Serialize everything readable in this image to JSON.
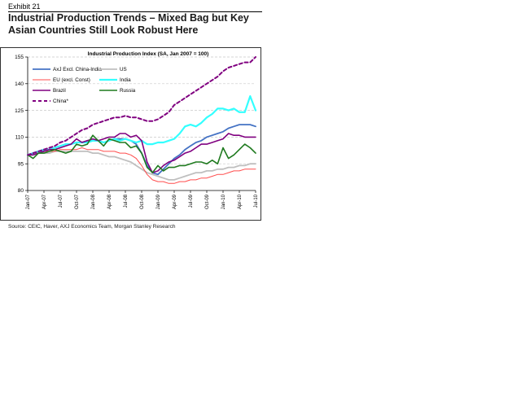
{
  "header": {
    "exhibit": "Exhibit 21",
    "title_line1": "Industrial Production Trends – Mixed Bag but Key",
    "title_line2": "Asian Countries Still Look Robust Here"
  },
  "source": "Source: CEIC, Haver, AXJ Economics Team, Morgan Stanley Research",
  "chart_data": {
    "type": "line",
    "title": "Industrial Production Index (SA, Jan 2007 = 100)",
    "xlabel": "",
    "ylabel": "",
    "ylim": [
      80,
      155
    ],
    "yticks": [
      80,
      95,
      110,
      125,
      140,
      155
    ],
    "ytick_labels": [
      "80",
      "95",
      "110",
      "125",
      "140",
      "155"
    ],
    "x_months": 43,
    "xtick_positions": [
      0,
      3,
      6,
      9,
      12,
      15,
      18,
      21,
      24,
      27,
      30,
      33,
      36,
      39,
      42
    ],
    "xtick_labels": [
      "Jan-07",
      "Apr-07",
      "Jul-07",
      "Oct-07",
      "Jan-08",
      "Apr-08",
      "Jul-08",
      "Oct-08",
      "Jan-09",
      "Apr-09",
      "Jul-09",
      "Oct-09",
      "Jan-10",
      "Apr-10",
      "Jul-10"
    ],
    "grid": "horizontal dashed",
    "legend": "top-left",
    "series": [
      {
        "name": "AxJ Excl. China-India",
        "color": "#4472c4",
        "style": "solid",
        "width": 1.8,
        "values": [
          100,
          101,
          102,
          102,
          103,
          104,
          105,
          106,
          106,
          107,
          107,
          108,
          108,
          108,
          107,
          108,
          109,
          109,
          109,
          108,
          106,
          101,
          94,
          90,
          89,
          92,
          95,
          98,
          100,
          103,
          105,
          107,
          108,
          110,
          111,
          112,
          113,
          115,
          116,
          117,
          117,
          117,
          116
        ]
      },
      {
        "name": "US",
        "color": "#bfbfbf",
        "style": "solid",
        "width": 1.8,
        "values": [
          100,
          100,
          101,
          101,
          101,
          102,
          102,
          102,
          102,
          102,
          102,
          102,
          101,
          101,
          100,
          99,
          99,
          98,
          97,
          96,
          94,
          92,
          90,
          89,
          88,
          87,
          86,
          86,
          87,
          88,
          89,
          90,
          90,
          91,
          91,
          92,
          92,
          93,
          93,
          94,
          94,
          95,
          95
        ]
      },
      {
        "name": "EU (excl. Const)",
        "color": "#ff4d4d",
        "style": "solid",
        "width": 1,
        "values": [
          100,
          101,
          101,
          102,
          102,
          102,
          103,
          103,
          103,
          103,
          104,
          103,
          103,
          103,
          102,
          102,
          102,
          101,
          101,
          100,
          98,
          94,
          89,
          86,
          85,
          85,
          84,
          84,
          85,
          85,
          86,
          86,
          87,
          87,
          88,
          89,
          89,
          90,
          91,
          91,
          92,
          92,
          92
        ]
      },
      {
        "name": "India",
        "color": "#33ffff",
        "style": "solid",
        "width": 2.2,
        "values": [
          100,
          101,
          102,
          103,
          103,
          104,
          105,
          106,
          106,
          107,
          107,
          107,
          108,
          108,
          107,
          108,
          109,
          108,
          109,
          108,
          107,
          108,
          106,
          106,
          107,
          107,
          108,
          109,
          112,
          116,
          117,
          116,
          118,
          121,
          123,
          126,
          126,
          125,
          126,
          124,
          124,
          133,
          125
        ]
      },
      {
        "name": "Brazil",
        "color": "#800080",
        "style": "solid",
        "width": 1.6,
        "values": [
          100,
          100,
          101,
          102,
          103,
          103,
          104,
          105,
          106,
          109,
          107,
          108,
          109,
          108,
          109,
          110,
          110,
          112,
          112,
          110,
          111,
          108,
          96,
          90,
          91,
          94,
          96,
          97,
          99,
          101,
          102,
          104,
          106,
          106,
          107,
          108,
          109,
          112,
          111,
          111,
          110,
          110,
          110
        ]
      },
      {
        "name": "Russia",
        "color": "#1f7a1f",
        "style": "solid",
        "width": 1.6,
        "values": [
          100,
          98,
          101,
          101,
          102,
          103,
          102,
          101,
          102,
          106,
          105,
          106,
          111,
          108,
          105,
          109,
          108,
          107,
          107,
          104,
          105,
          101,
          93,
          90,
          94,
          91,
          93,
          93,
          94,
          94,
          95,
          96,
          96,
          95,
          97,
          95,
          104,
          98,
          100,
          103,
          106,
          104,
          101
        ]
      },
      {
        "name": "China*",
        "color": "#800080",
        "style": "dashed",
        "width": 2,
        "values": [
          100,
          101,
          102,
          103,
          104,
          105,
          107,
          108,
          110,
          112,
          114,
          115,
          117,
          118,
          119,
          120,
          121,
          121,
          122,
          121,
          121,
          120,
          119,
          119,
          120,
          122,
          124,
          128,
          130,
          132,
          134,
          136,
          138,
          140,
          142,
          144,
          147,
          149,
          150,
          151,
          152,
          152,
          155
        ]
      }
    ]
  }
}
